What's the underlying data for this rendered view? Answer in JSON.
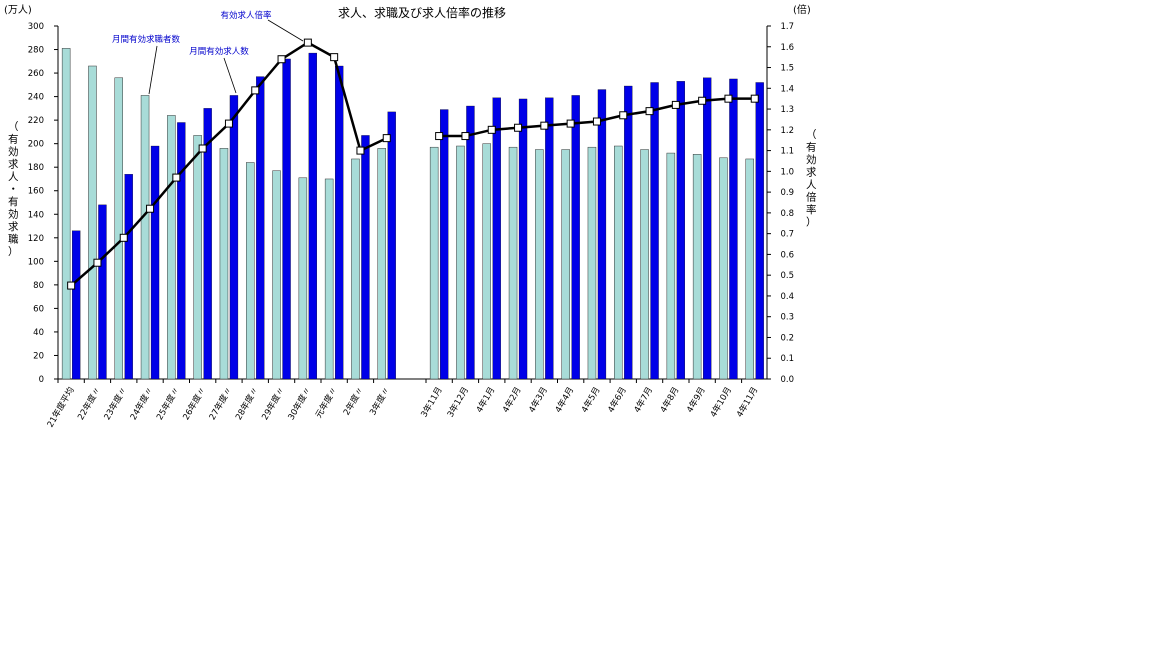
{
  "chart_data": {
    "type": "bar+line",
    "title": "求人、求職及び求人倍率の推移",
    "left_unit": "(万人)",
    "right_unit": "(倍)",
    "left_axis_label": "（有効求人・有効求職）",
    "right_axis_label": "（有効求人倍率）",
    "left_ylim": [
      0,
      300
    ],
    "left_ticks": [
      0,
      20,
      40,
      60,
      80,
      100,
      120,
      140,
      160,
      180,
      200,
      220,
      240,
      260,
      280,
      300
    ],
    "right_ylim": [
      0,
      1.7
    ],
    "right_ticks": [
      "0.0",
      "0.1",
      "0.2",
      "0.3",
      "0.4",
      "0.5",
      "0.6",
      "0.7",
      "0.8",
      "0.9",
      "1.0",
      "1.1",
      "1.2",
      "1.3",
      "1.4",
      "1.5",
      "1.6",
      "1.7"
    ],
    "grid": false,
    "groups": [
      {
        "categories": [
          "21年度平均",
          "22年度〃",
          "23年度〃",
          "24年度〃",
          "25年度〃",
          "26年度〃",
          "27年度〃",
          "28年度〃",
          "29年度〃",
          "30年度〃",
          "元年度〃",
          "2年度〃",
          "3年度〃"
        ],
        "jobseekers": [
          281,
          266,
          256,
          241,
          224,
          207,
          196,
          184,
          177,
          171,
          170,
          187,
          196
        ],
        "openings": [
          126,
          148,
          174,
          198,
          218,
          230,
          241,
          257,
          272,
          277,
          266,
          207,
          227
        ],
        "ratio": [
          0.45,
          0.56,
          0.68,
          0.82,
          0.97,
          1.11,
          1.23,
          1.39,
          1.54,
          1.62,
          1.55,
          1.1,
          1.16
        ]
      },
      {
        "categories": [
          "3年11月",
          "3年12月",
          "4年1月",
          "4年2月",
          "4年3月",
          "4年4月",
          "4年5月",
          "4年6月",
          "4年7月",
          "4年8月",
          "4年9月",
          "4年10月",
          "4年11月"
        ],
        "jobseekers": [
          197,
          198,
          200,
          197,
          195,
          195,
          197,
          198,
          195,
          192,
          191,
          188,
          187
        ],
        "openings": [
          229,
          232,
          239,
          238,
          239,
          241,
          246,
          249,
          252,
          253,
          256,
          255,
          252
        ],
        "ratio": [
          1.17,
          1.17,
          1.2,
          1.21,
          1.22,
          1.23,
          1.24,
          1.27,
          1.29,
          1.32,
          1.34,
          1.35,
          1.35
        ]
      }
    ],
    "series": [
      {
        "name": "月間有効求職者数",
        "key": "jobseekers",
        "axis": "left",
        "kind": "bar",
        "color": "#a8dcd8"
      },
      {
        "name": "月間有効求人数",
        "key": "openings",
        "axis": "left",
        "kind": "bar",
        "color": "#0000e8"
      },
      {
        "name": "有効求人倍率",
        "key": "ratio",
        "axis": "right",
        "kind": "line",
        "color": "#000000"
      }
    ],
    "annotations": [
      "有効求人倍率",
      "月間有効求職者数",
      "月間有効求人数"
    ]
  }
}
